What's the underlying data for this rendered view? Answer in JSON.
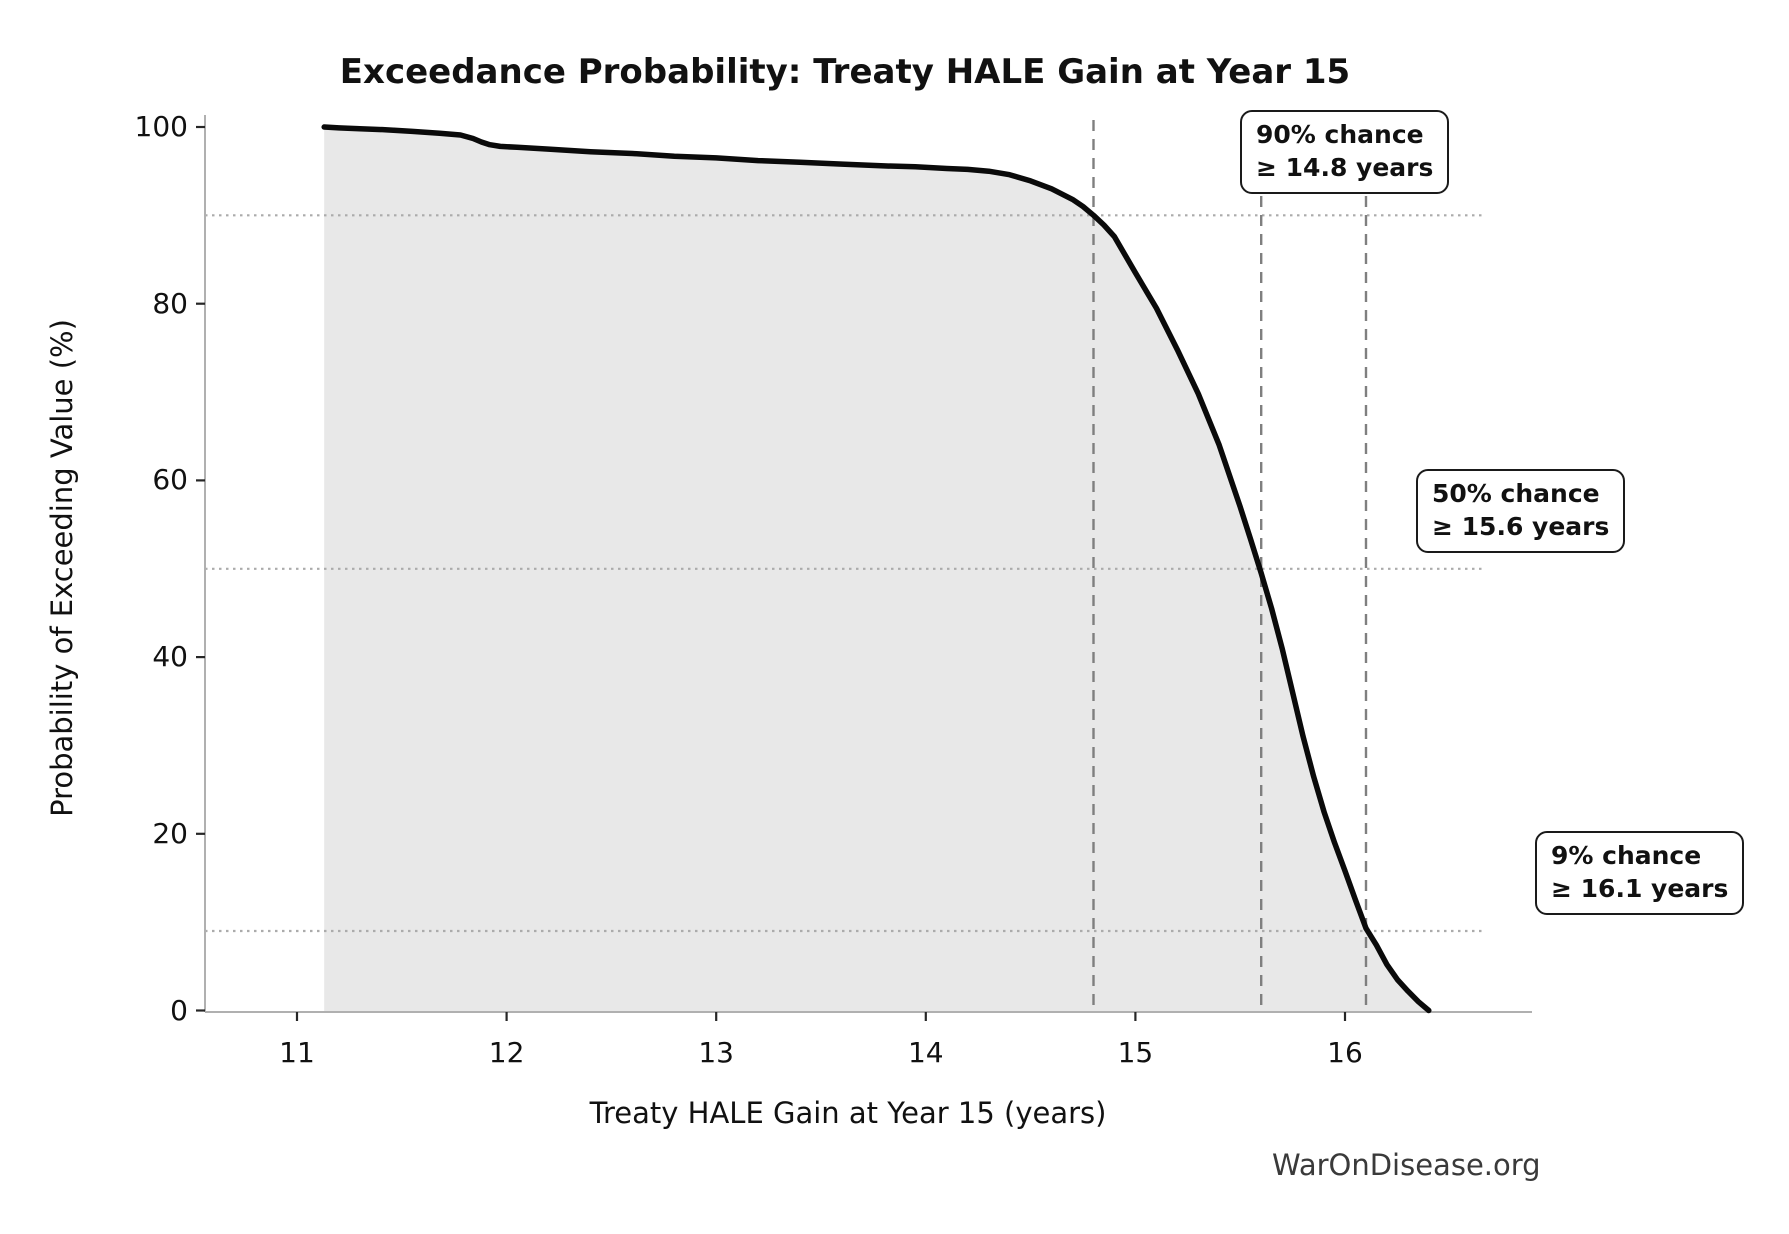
{
  "chart": {
    "title": "Exceedance Probability: Treaty HALE Gain at Year 15",
    "xlabel": "Treaty HALE Gain at Year 15 (years)",
    "ylabel": "Probability of Exceeding Value (%)",
    "watermark": "WarOnDisease.org"
  },
  "chart_data": {
    "type": "line",
    "title": "Exceedance Probability: Treaty HALE Gain at Year 15",
    "xlabel": "Treaty HALE Gain at Year 15 (years)",
    "ylabel": "Probability of Exceeding Value (%)",
    "xlim": [
      10.55,
      16.7
    ],
    "ylim": [
      0,
      103
    ],
    "x_ticks": [
      11,
      12,
      13,
      14,
      15,
      16
    ],
    "y_ticks": [
      0,
      20,
      40,
      60,
      80,
      100
    ],
    "grid": "off",
    "legend": "none",
    "area_fill": true,
    "series": [
      {
        "name": "exceedance_probability",
        "x": [
          11.13,
          11.2,
          11.3,
          11.42,
          11.55,
          11.68,
          11.78,
          11.84,
          11.88,
          11.92,
          11.97,
          12.05,
          12.2,
          12.4,
          12.6,
          12.8,
          13.0,
          13.2,
          13.4,
          13.6,
          13.8,
          13.95,
          14.1,
          14.2,
          14.3,
          14.4,
          14.5,
          14.6,
          14.7,
          14.75,
          14.8,
          14.85,
          14.9,
          15.0,
          15.1,
          15.2,
          15.3,
          15.4,
          15.5,
          15.55,
          15.6,
          15.65,
          15.7,
          15.75,
          15.8,
          15.85,
          15.9,
          15.95,
          16.0,
          16.05,
          16.1,
          16.15,
          16.2,
          16.25,
          16.3,
          16.35,
          16.4
        ],
        "y": [
          100,
          99.9,
          99.8,
          99.7,
          99.5,
          99.3,
          99.1,
          98.7,
          98.3,
          98.0,
          97.8,
          97.7,
          97.5,
          97.2,
          97.0,
          96.7,
          96.5,
          96.2,
          96.0,
          95.8,
          95.6,
          95.5,
          95.3,
          95.2,
          95.0,
          94.6,
          93.9,
          93.0,
          91.8,
          91.0,
          90.0,
          88.9,
          87.6,
          83.5,
          79.5,
          74.8,
          69.8,
          64.0,
          57.0,
          53.3,
          49.5,
          45.5,
          41.0,
          36.0,
          31.0,
          26.5,
          22.5,
          19.0,
          15.8,
          12.5,
          9.3,
          7.4,
          5.2,
          3.5,
          2.2,
          1.0,
          0.0
        ]
      }
    ],
    "reference_lines": [
      {
        "probability_pct": 90,
        "value_years": 14.8,
        "label_line1": "90% chance",
        "label_line2": "≥ 14.8 years"
      },
      {
        "probability_pct": 50,
        "value_years": 15.6,
        "label_line1": "50% chance",
        "label_line2": "≥ 15.6 years"
      },
      {
        "probability_pct": 9,
        "value_years": 16.1,
        "label_line1": "9% chance",
        "label_line2": "≥ 16.1 years"
      }
    ],
    "colors": {
      "curve": "#0a0a0a",
      "fill": "#e8e8e8",
      "dashed_line": "#7f7f7f",
      "dotted_line": "#ababab",
      "spine": "#b0b0b0",
      "tick": "#262626",
      "text": "#111111",
      "watermark": "#3a3a3a"
    }
  }
}
